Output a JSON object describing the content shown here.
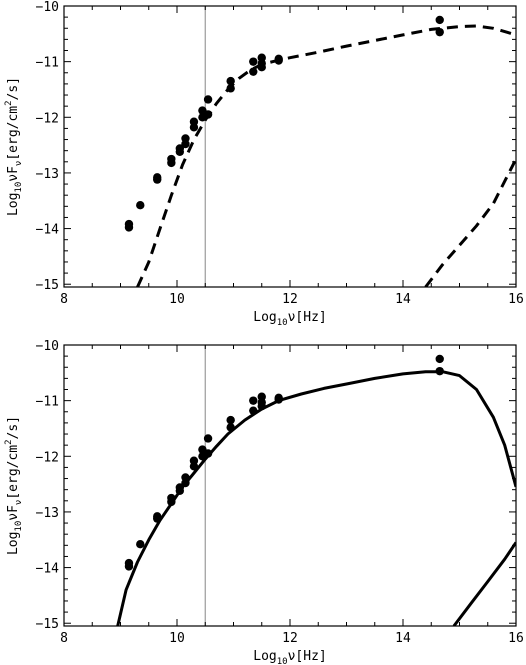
{
  "chart_data": [
    {
      "type": "line",
      "panel": "top",
      "title": "",
      "xlabel": "Log10ν[Hz]",
      "ylabel": "Log10νFν[erg/cm2/s]",
      "xlim": [
        8,
        16
      ],
      "ylim": [
        -15.05,
        -10
      ],
      "xticks": [
        8,
        10,
        12,
        14,
        16
      ],
      "yticks": [
        -10,
        -11,
        -12,
        -13,
        -14,
        -15
      ],
      "xtick_labels": [
        "8",
        "10",
        "12",
        "14",
        "16"
      ],
      "ytick_labels": [
        "−10",
        "−11",
        "−12",
        "−13",
        "−14",
        "−15"
      ],
      "grid": false,
      "reference_line_x": 10.5,
      "reference_line_color": "#9a9a9a",
      "line_style": "dashed",
      "series": [
        {
          "style": "dashed",
          "x": [
            9.3,
            9.5,
            9.7,
            9.9,
            10.1,
            10.3,
            10.5,
            10.7,
            10.9,
            11.1,
            11.3,
            11.5,
            11.7,
            12,
            12.5,
            13,
            13.5,
            14,
            14.5,
            15,
            15.3,
            15.6,
            16
          ],
          "y": [
            -15.05,
            -14.6,
            -14.0,
            -13.4,
            -12.85,
            -12.4,
            -12.05,
            -11.75,
            -11.5,
            -11.3,
            -11.15,
            -11.05,
            -11.0,
            -10.93,
            -10.83,
            -10.72,
            -10.62,
            -10.52,
            -10.42,
            -10.37,
            -10.36,
            -10.4,
            -10.52
          ]
        },
        {
          "style": "dashed",
          "x": [
            14.4,
            14.7,
            15.0,
            15.3,
            15.6,
            16
          ],
          "y": [
            -15.05,
            -14.65,
            -14.3,
            -13.95,
            -13.55,
            -12.75
          ]
        },
        {
          "type": "scatter",
          "x": [
            9.15,
            9.15,
            9.35,
            9.65,
            9.65,
            9.9,
            9.9,
            10.05,
            10.05,
            10.15,
            10.15,
            10.3,
            10.3,
            10.45,
            10.45,
            10.55,
            10.55,
            10.95,
            10.95,
            11.35,
            11.35,
            11.5,
            11.5,
            11.5,
            11.8,
            11.8,
            14.65,
            14.65
          ],
          "y": [
            -13.92,
            -13.98,
            -13.58,
            -13.08,
            -13.12,
            -12.75,
            -12.82,
            -12.56,
            -12.62,
            -12.38,
            -12.48,
            -12.08,
            -12.18,
            -11.88,
            -12.0,
            -11.68,
            -11.95,
            -11.35,
            -11.48,
            -11.0,
            -11.18,
            -10.93,
            -11.03,
            -11.1,
            -10.95,
            -10.98,
            -10.25,
            -10.47
          ]
        }
      ]
    },
    {
      "type": "line",
      "panel": "bottom",
      "title": "",
      "xlabel": "Log10ν[Hz]",
      "ylabel": "Log10νFν[erg/cm2/s]",
      "xlim": [
        8,
        16
      ],
      "ylim": [
        -15.05,
        -10
      ],
      "xticks": [
        8,
        10,
        12,
        14,
        16
      ],
      "yticks": [
        -10,
        -11,
        -12,
        -13,
        -14,
        -15
      ],
      "xtick_labels": [
        "8",
        "10",
        "12",
        "14",
        "16"
      ],
      "ytick_labels": [
        "−10",
        "−11",
        "−12",
        "−13",
        "−14",
        "−15"
      ],
      "grid": false,
      "reference_line_x": 10.5,
      "reference_line_color": "#9a9a9a",
      "line_style": "solid",
      "series": [
        {
          "style": "solid",
          "x": [
            8.95,
            9.1,
            9.3,
            9.5,
            9.7,
            9.9,
            10.1,
            10.3,
            10.5,
            10.7,
            10.9,
            11.2,
            11.5,
            11.8,
            12.2,
            12.6,
            13.0,
            13.5,
            14.0,
            14.4,
            14.7,
            15.0,
            15.3,
            15.6,
            15.8,
            16
          ],
          "y": [
            -15.05,
            -14.4,
            -13.9,
            -13.5,
            -13.15,
            -12.85,
            -12.55,
            -12.3,
            -12.05,
            -11.82,
            -11.6,
            -11.35,
            -11.15,
            -11.0,
            -10.88,
            -10.78,
            -10.7,
            -10.6,
            -10.52,
            -10.48,
            -10.48,
            -10.55,
            -10.8,
            -11.3,
            -11.8,
            -12.55
          ]
        },
        {
          "style": "solid",
          "x": [
            14.9,
            15.2,
            15.5,
            15.8,
            16
          ],
          "y": [
            -15.05,
            -14.65,
            -14.25,
            -13.85,
            -13.55
          ]
        },
        {
          "type": "scatter",
          "x": [
            9.15,
            9.15,
            9.35,
            9.65,
            9.65,
            9.9,
            9.9,
            10.05,
            10.05,
            10.15,
            10.15,
            10.3,
            10.3,
            10.45,
            10.45,
            10.55,
            10.55,
            10.95,
            10.95,
            11.35,
            11.35,
            11.5,
            11.5,
            11.5,
            11.8,
            11.8,
            14.65,
            14.65
          ],
          "y": [
            -13.92,
            -13.98,
            -13.58,
            -13.08,
            -13.12,
            -12.75,
            -12.82,
            -12.56,
            -12.62,
            -12.38,
            -12.48,
            -12.08,
            -12.18,
            -11.88,
            -12.0,
            -11.68,
            -11.95,
            -11.35,
            -11.48,
            -11.0,
            -11.18,
            -10.93,
            -11.03,
            -11.1,
            -10.95,
            -10.98,
            -10.25,
            -10.47
          ]
        }
      ]
    }
  ]
}
